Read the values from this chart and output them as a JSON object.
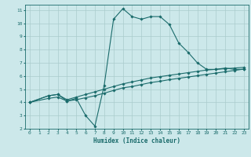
{
  "xlabel": "Humidex (Indice chaleur)",
  "bg_color": "#cce8ea",
  "grid_color": "#aacccc",
  "line_color": "#1a6b6b",
  "xlim": [
    -0.5,
    23.5
  ],
  "ylim": [
    2,
    11.4
  ],
  "xticks": [
    0,
    1,
    2,
    3,
    4,
    5,
    6,
    7,
    8,
    9,
    10,
    11,
    12,
    13,
    14,
    15,
    16,
    17,
    18,
    19,
    20,
    21,
    22,
    23
  ],
  "yticks": [
    2,
    3,
    4,
    5,
    6,
    7,
    8,
    9,
    10,
    11
  ],
  "curve1_x": [
    0,
    2,
    3,
    4,
    5,
    6,
    7,
    8,
    9,
    10,
    11,
    12,
    13,
    14,
    15,
    16,
    17,
    18,
    19,
    20,
    21,
    22,
    23
  ],
  "curve1_y": [
    4.0,
    4.5,
    4.6,
    4.1,
    4.3,
    3.0,
    2.2,
    5.3,
    10.3,
    11.1,
    10.5,
    10.3,
    10.5,
    10.5,
    9.9,
    8.5,
    7.8,
    7.0,
    6.5,
    6.5,
    6.6,
    6.5,
    6.5
  ],
  "curve2_x": [
    0,
    2,
    3,
    4,
    5,
    6,
    7,
    8,
    9,
    10,
    11,
    12,
    13,
    14,
    15,
    16,
    17,
    18,
    19,
    20,
    21,
    22,
    23
  ],
  "curve2_y": [
    4.0,
    4.5,
    4.6,
    4.2,
    4.4,
    4.6,
    4.8,
    5.0,
    5.2,
    5.4,
    5.55,
    5.7,
    5.85,
    5.95,
    6.05,
    6.15,
    6.25,
    6.35,
    6.45,
    6.5,
    6.55,
    6.6,
    6.65
  ],
  "curve3_x": [
    0,
    2,
    3,
    4,
    5,
    6,
    7,
    8,
    9,
    10,
    11,
    12,
    13,
    14,
    15,
    16,
    17,
    18,
    19,
    20,
    21,
    22,
    23
  ],
  "curve3_y": [
    4.0,
    4.3,
    4.4,
    4.1,
    4.2,
    4.35,
    4.5,
    4.7,
    4.9,
    5.1,
    5.2,
    5.35,
    5.5,
    5.6,
    5.72,
    5.82,
    5.92,
    6.02,
    6.12,
    6.22,
    6.32,
    6.42,
    6.52
  ]
}
